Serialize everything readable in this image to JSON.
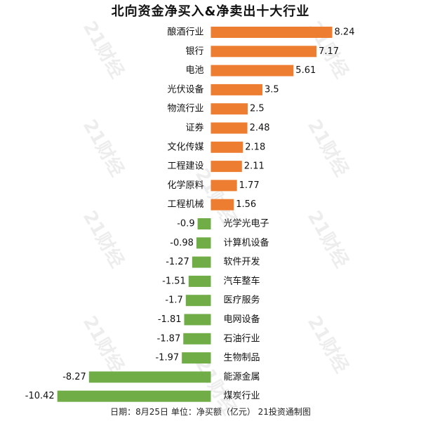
{
  "chart_data": {
    "type": "bar",
    "orientation": "horizontal",
    "title": "北向资金净买入&净卖出十大行业",
    "footer": "日期：8月25日 单位：净买额（亿元） 21投资通制图",
    "watermark": "21财经",
    "categories": [
      "酿酒行业",
      "银行",
      "电池",
      "光伏设备",
      "物流行业",
      "证券",
      "文化传媒",
      "工程建设",
      "化学原料",
      "工程机械",
      "光学光电子",
      "计算机设备",
      "软件开发",
      "汽车整车",
      "医疗服务",
      "电网设备",
      "石油行业",
      "生物制品",
      "能源金属",
      "煤炭行业"
    ],
    "values": [
      8.24,
      7.17,
      5.61,
      3.5,
      2.5,
      2.48,
      2.18,
      2.11,
      1.77,
      1.56,
      -0.9,
      -0.98,
      -1.27,
      -1.51,
      -1.7,
      -1.81,
      -1.87,
      -1.97,
      -8.27,
      -10.42
    ],
    "value_labels": [
      "8.24",
      "7.17",
      "5.61",
      "3.5",
      "2.5",
      "2.48",
      "2.18",
      "2.11",
      "1.77",
      "1.56",
      "-0.9",
      "-0.98",
      "-1.27",
      "-1.51",
      "-1.7",
      "-1.81",
      "-1.87",
      "-1.97",
      "-8.27",
      "-10.42"
    ],
    "colors": {
      "positive": "#ED7D31",
      "negative": "#70AD47"
    },
    "grid": false,
    "legend": false
  }
}
